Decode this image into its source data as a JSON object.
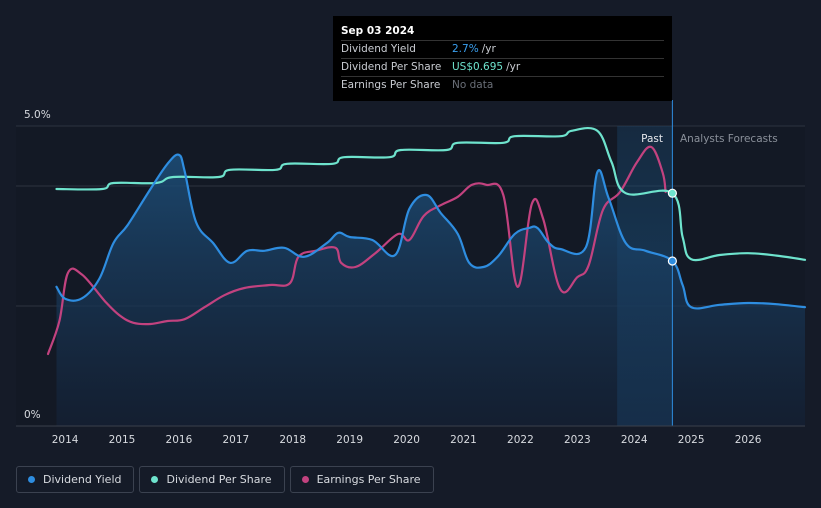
{
  "tooltip": {
    "date": "Sep 03 2024",
    "rows": [
      {
        "label": "Dividend Yield",
        "value": "2.7%",
        "unit": "/yr"
      },
      {
        "label": "Dividend Per Share",
        "value": "US$0.695",
        "unit": "/yr"
      },
      {
        "label": "Earnings Per Share",
        "value": "No data",
        "unit": ""
      }
    ]
  },
  "legend": [
    {
      "label": "Dividend Yield",
      "color": "#2e8de0"
    },
    {
      "label": "Dividend Per Share",
      "color": "#6ee3cd"
    },
    {
      "label": "Earnings Per Share",
      "color": "#c2427f"
    }
  ],
  "chart_data": {
    "type": "line",
    "ylabel_top": "5.0%",
    "ylabel_bottom": "0%",
    "ylim": [
      0,
      5
    ],
    "xlim": [
      2013.7,
      2027.0
    ],
    "x_ticks": [
      "2014",
      "2015",
      "2016",
      "2017",
      "2018",
      "2019",
      "2020",
      "2021",
      "2022",
      "2023",
      "2024",
      "2025",
      "2026"
    ],
    "past_label": "Past",
    "forecast_label": "Analysts Forecasts",
    "past_region": [
      2023.7,
      2024.67
    ],
    "current_x": 2024.67,
    "series": [
      {
        "name": "Dividend Yield",
        "color": "#2e8de0",
        "points": [
          [
            2013.85,
            2.32
          ],
          [
            2014.0,
            2.12
          ],
          [
            2014.3,
            2.13
          ],
          [
            2014.6,
            2.45
          ],
          [
            2014.85,
            3.05
          ],
          [
            2015.1,
            3.35
          ],
          [
            2015.5,
            3.95
          ],
          [
            2015.8,
            4.37
          ],
          [
            2016.0,
            4.52
          ],
          [
            2016.1,
            4.25
          ],
          [
            2016.3,
            3.4
          ],
          [
            2016.6,
            3.05
          ],
          [
            2016.9,
            2.72
          ],
          [
            2017.2,
            2.92
          ],
          [
            2017.5,
            2.92
          ],
          [
            2017.85,
            2.97
          ],
          [
            2018.2,
            2.82
          ],
          [
            2018.6,
            3.05
          ],
          [
            2018.8,
            3.22
          ],
          [
            2019.0,
            3.15
          ],
          [
            2019.4,
            3.1
          ],
          [
            2019.8,
            2.85
          ],
          [
            2020.05,
            3.62
          ],
          [
            2020.35,
            3.85
          ],
          [
            2020.6,
            3.55
          ],
          [
            2020.9,
            3.2
          ],
          [
            2021.1,
            2.72
          ],
          [
            2021.35,
            2.65
          ],
          [
            2021.6,
            2.82
          ],
          [
            2021.9,
            3.2
          ],
          [
            2022.15,
            3.3
          ],
          [
            2022.3,
            3.3
          ],
          [
            2022.5,
            3.05
          ],
          [
            2022.7,
            2.95
          ],
          [
            2023.15,
            2.98
          ],
          [
            2023.35,
            4.23
          ],
          [
            2023.55,
            3.8
          ],
          [
            2023.85,
            3.05
          ],
          [
            2024.2,
            2.92
          ],
          [
            2024.67,
            2.75
          ],
          [
            2024.85,
            2.35
          ],
          [
            2025.0,
            1.98
          ],
          [
            2025.5,
            2.02
          ],
          [
            2026.0,
            2.05
          ],
          [
            2026.5,
            2.03
          ],
          [
            2027.0,
            1.98
          ]
        ]
      },
      {
        "name": "Dividend Per Share",
        "color": "#6ee3cd",
        "points": [
          [
            2013.85,
            3.95
          ],
          [
            2014.65,
            3.95
          ],
          [
            2014.85,
            4.05
          ],
          [
            2015.6,
            4.05
          ],
          [
            2015.9,
            4.15
          ],
          [
            2016.7,
            4.15
          ],
          [
            2016.9,
            4.27
          ],
          [
            2017.7,
            4.27
          ],
          [
            2017.9,
            4.37
          ],
          [
            2018.7,
            4.37
          ],
          [
            2018.9,
            4.48
          ],
          [
            2019.7,
            4.48
          ],
          [
            2019.9,
            4.6
          ],
          [
            2020.7,
            4.6
          ],
          [
            2020.9,
            4.72
          ],
          [
            2021.7,
            4.72
          ],
          [
            2021.9,
            4.83
          ],
          [
            2022.7,
            4.83
          ],
          [
            2022.9,
            4.92
          ],
          [
            2023.35,
            4.92
          ],
          [
            2023.6,
            4.4
          ],
          [
            2023.85,
            3.88
          ],
          [
            2024.67,
            3.88
          ],
          [
            2024.85,
            3.15
          ],
          [
            2025.0,
            2.78
          ],
          [
            2025.5,
            2.85
          ],
          [
            2026.0,
            2.88
          ],
          [
            2026.5,
            2.84
          ],
          [
            2027.0,
            2.77
          ]
        ]
      },
      {
        "name": "Earnings Per Share",
        "color": "#c2427f",
        "points": [
          [
            2013.7,
            1.2
          ],
          [
            2013.9,
            1.75
          ],
          [
            2014.05,
            2.55
          ],
          [
            2014.3,
            2.52
          ],
          [
            2014.7,
            2.08
          ],
          [
            2014.95,
            1.85
          ],
          [
            2015.2,
            1.72
          ],
          [
            2015.5,
            1.7
          ],
          [
            2015.8,
            1.75
          ],
          [
            2016.1,
            1.78
          ],
          [
            2016.45,
            1.98
          ],
          [
            2016.8,
            2.18
          ],
          [
            2017.15,
            2.3
          ],
          [
            2017.6,
            2.35
          ],
          [
            2017.95,
            2.38
          ],
          [
            2018.1,
            2.82
          ],
          [
            2018.4,
            2.92
          ],
          [
            2018.75,
            2.97
          ],
          [
            2018.85,
            2.72
          ],
          [
            2019.1,
            2.65
          ],
          [
            2019.45,
            2.88
          ],
          [
            2019.85,
            3.2
          ],
          [
            2020.05,
            3.1
          ],
          [
            2020.3,
            3.5
          ],
          [
            2020.6,
            3.68
          ],
          [
            2020.9,
            3.82
          ],
          [
            2021.15,
            4.02
          ],
          [
            2021.4,
            4.02
          ],
          [
            2021.7,
            3.85
          ],
          [
            2021.95,
            2.32
          ],
          [
            2022.2,
            3.7
          ],
          [
            2022.4,
            3.45
          ],
          [
            2022.7,
            2.28
          ],
          [
            2023.0,
            2.48
          ],
          [
            2023.2,
            2.68
          ],
          [
            2023.45,
            3.6
          ],
          [
            2023.75,
            3.9
          ],
          [
            2024.05,
            4.4
          ],
          [
            2024.3,
            4.65
          ],
          [
            2024.5,
            4.22
          ],
          [
            2024.55,
            3.9
          ]
        ]
      }
    ],
    "markers": [
      {
        "series": "Dividend Yield",
        "x": 2024.67,
        "y": 2.75
      },
      {
        "series": "Dividend Per Share",
        "x": 2024.67,
        "y": 3.88
      }
    ]
  }
}
